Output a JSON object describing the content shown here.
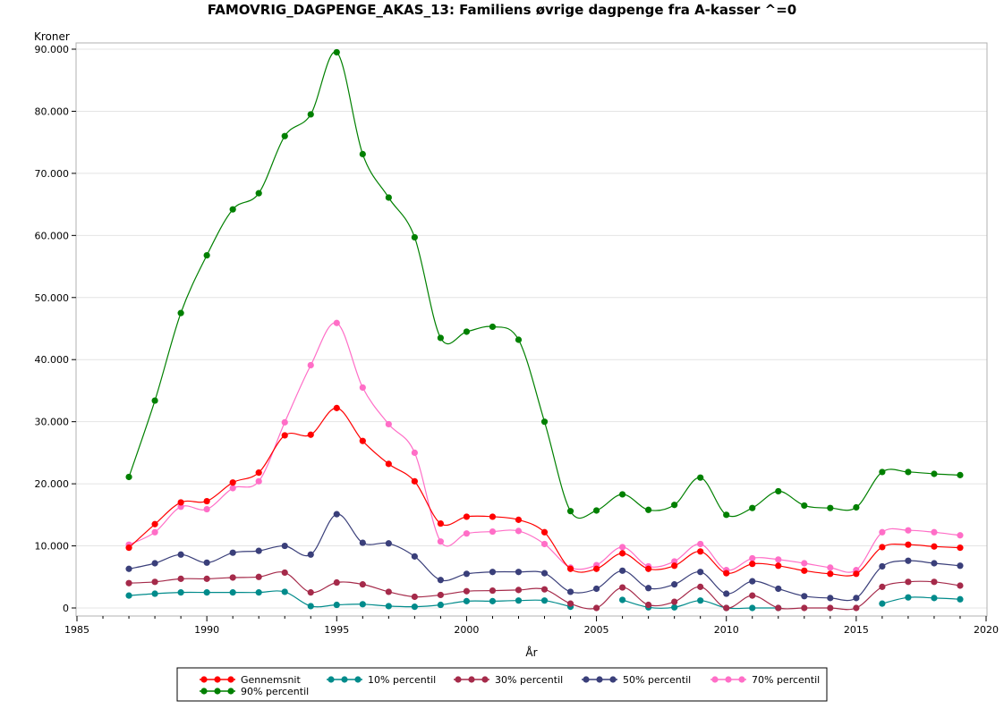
{
  "chart_data": {
    "type": "line",
    "title": "FAMOVRIG_DAGPENGE_AKAS_13: Familiens øvrige dagpenge fra A-kasser ^=0",
    "xlabel": "År",
    "ylabel": "Kroner",
    "xlim": [
      1985,
      2020
    ],
    "ylim": [
      0,
      90000
    ],
    "x_ticks": [
      "1985",
      "1990",
      "1995",
      "2000",
      "2005",
      "2010",
      "2015",
      "2020"
    ],
    "y_ticks": [
      "0",
      "10.000",
      "20.000",
      "30.000",
      "40.000",
      "50.000",
      "60.000",
      "70.000",
      "80.000",
      "90.000"
    ],
    "grid": "horizontal",
    "legend_position": "bottom",
    "x": [
      1987,
      1988,
      1989,
      1990,
      1991,
      1992,
      1993,
      1994,
      1995,
      1996,
      1997,
      1998,
      1999,
      2000,
      2001,
      2002,
      2003,
      2004,
      2005,
      2006,
      2007,
      2008,
      2009,
      2010,
      2011,
      2012,
      2013,
      2014,
      2015,
      2016,
      2017,
      2018,
      2019
    ],
    "series": [
      {
        "name": "Gennemsnit",
        "color": "#ff0000",
        "values": [
          9700,
          13500,
          17000,
          17200,
          20200,
          21800,
          27800,
          27900,
          32200,
          26900,
          23200,
          20400,
          13600,
          14700,
          14700,
          14200,
          12200,
          6300,
          6300,
          8800,
          6300,
          6800,
          9100,
          5600,
          7100,
          6800,
          6000,
          5500,
          5500,
          9800,
          10200,
          9900,
          9700
        ]
      },
      {
        "name": "10% percentil",
        "color": "#008b8b",
        "values": [
          2000,
          2300,
          2500,
          2500,
          2500,
          2500,
          2600,
          300,
          500,
          600,
          300,
          200,
          500,
          1100,
          1100,
          1200,
          1200,
          200,
          null,
          1300,
          100,
          100,
          1200,
          0,
          0,
          0,
          null,
          null,
          null,
          700,
          1700,
          1600,
          1400
        ]
      },
      {
        "name": "30% percentil",
        "color": "#a52a4a",
        "values": [
          4000,
          4200,
          4700,
          4700,
          4900,
          5000,
          5700,
          2500,
          4100,
          3800,
          2600,
          1800,
          2100,
          2700,
          2800,
          2900,
          3000,
          700,
          0,
          3300,
          500,
          1000,
          3400,
          0,
          2000,
          0,
          0,
          0,
          0,
          3400,
          4200,
          4200,
          3600
        ]
      },
      {
        "name": "50% percentil",
        "color": "#3a3f7a",
        "values": [
          6300,
          7200,
          8600,
          7300,
          8900,
          9200,
          10000,
          8600,
          15100,
          10500,
          10400,
          8300,
          4500,
          5500,
          5800,
          5800,
          5600,
          2600,
          3100,
          6000,
          3200,
          3800,
          5800,
          2300,
          4300,
          3100,
          1900,
          1600,
          1600,
          6700,
          7600,
          7200,
          6800
        ]
      },
      {
        "name": "70% percentil",
        "color": "#ff6ec7",
        "values": [
          10200,
          12200,
          16300,
          15900,
          19300,
          20400,
          29900,
          39100,
          45900,
          35500,
          29600,
          25000,
          10700,
          12000,
          12300,
          12400,
          10300,
          6500,
          6900,
          9800,
          6700,
          7500,
          10300,
          6100,
          8000,
          7800,
          7200,
          6500,
          6100,
          12200,
          12500,
          12200,
          11700
        ]
      },
      {
        "name": "90% percentil",
        "color": "#008000",
        "values": [
          21100,
          33400,
          47500,
          56800,
          64200,
          66800,
          76000,
          79500,
          89500,
          73100,
          66100,
          59700,
          43500,
          44500,
          45300,
          43200,
          30000,
          15600,
          15700,
          18300,
          15800,
          16600,
          21000,
          15000,
          16100,
          18800,
          16500,
          16100,
          16200,
          21900,
          21900,
          21600,
          21400
        ]
      }
    ]
  }
}
